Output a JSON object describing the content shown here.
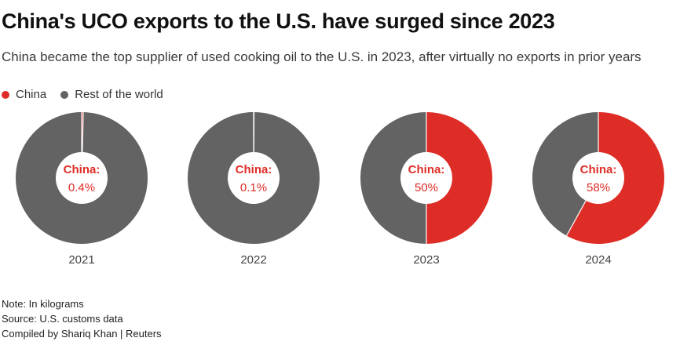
{
  "title": "China's UCO exports to the U.S. have surged since 2023",
  "subtitle": "China became the top supplier of used cooking oil to the U.S. in 2023, after virtually no exports in prior years",
  "colors": {
    "china": "#de2d26",
    "rest": "#636363",
    "china_label": "#de2d26",
    "year_label": "#444444"
  },
  "chart_data": {
    "type": "pie",
    "style": "donut",
    "legend": {
      "placement": "top-left",
      "entries": [
        "China",
        "Rest of the world"
      ]
    },
    "series": [
      {
        "name": "China",
        "values": [
          0.4,
          0.1,
          50,
          58
        ]
      },
      {
        "name": "Rest of the world",
        "values": [
          99.6,
          99.9,
          50,
          42
        ]
      }
    ],
    "categories": [
      "2021",
      "2022",
      "2023",
      "2024"
    ],
    "center_title": "China:",
    "center_values": [
      "0.4%",
      "0.1%",
      "50%",
      "58%"
    ],
    "unit": "%"
  },
  "footer": {
    "note": "Note: In kilograms",
    "source": "Source: U.S. customs data",
    "credit": "Compiled by Shariq Khan | Reuters"
  }
}
